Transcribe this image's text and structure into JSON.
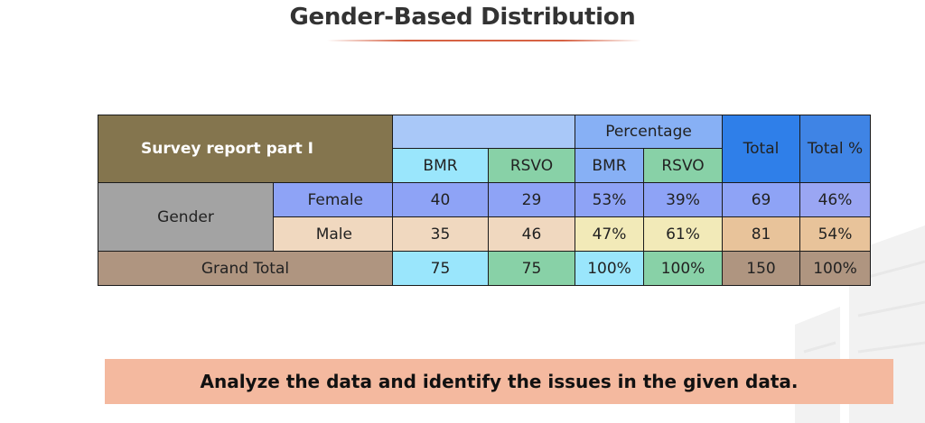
{
  "title": "Gender-Based Distribution",
  "table": {
    "caption": "Survey report part I",
    "percentage_header": "Percentage",
    "total_header": "Total",
    "total_pct_header": "Total %",
    "count_cols": [
      "BMR",
      "RSVO"
    ],
    "pct_cols": [
      "BMR",
      "RSVO"
    ],
    "group_label": "Gender",
    "rows": [
      {
        "label": "Female",
        "bmr": "40",
        "rsvo": "29",
        "pct_bmr": "53%",
        "pct_rsvo": "39%",
        "total": "69",
        "total_pct": "46%"
      },
      {
        "label": "Male",
        "bmr": "35",
        "rsvo": "46",
        "pct_bmr": "47%",
        "pct_rsvo": "61%",
        "total": "81",
        "total_pct": "54%"
      }
    ],
    "grand_total": {
      "label": "Grand Total",
      "bmr": "75",
      "rsvo": "75",
      "pct_bmr": "100%",
      "pct_rsvo": "100%",
      "total": "150",
      "total_pct": "100%"
    }
  },
  "task": "Analyze the data and identify the issues in the given data.",
  "colors": {
    "caption_bg": "#84754e",
    "underline": "#d66244",
    "task_bg": "#f4b99f",
    "total_header_bg": "#2f7fe9"
  }
}
